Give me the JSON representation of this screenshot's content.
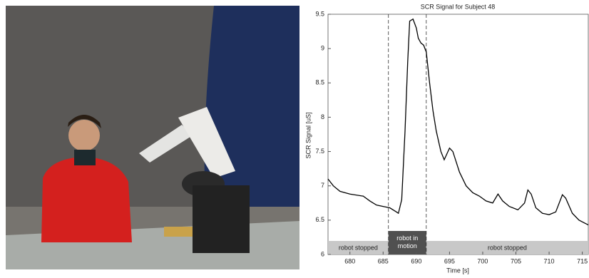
{
  "chart_data": {
    "type": "line",
    "title": "SCR Signal for Subject 48",
    "x_label": "Time [s]",
    "y_label": "SCR Signal [uS]",
    "x": [
      676.7,
      677.5,
      678.5,
      680,
      682,
      683,
      684,
      685,
      686,
      687,
      687.3,
      687.8,
      688.3,
      688.7,
      689,
      689.5,
      690,
      690.3,
      690.7,
      691.1,
      691.5,
      692,
      692.5,
      693,
      693.7,
      694.2,
      695,
      695.5,
      696.5,
      697.5,
      698.5,
      699.5,
      700.5,
      701.5,
      702.3,
      703,
      704,
      705.3,
      706.3,
      706.8,
      707.3,
      708,
      709,
      710,
      711,
      712,
      712.5,
      713.5,
      714.5,
      715.9
    ],
    "values": [
      7.1,
      7.0,
      6.92,
      6.88,
      6.85,
      6.78,
      6.72,
      6.7,
      6.68,
      6.62,
      6.6,
      6.8,
      7.8,
      8.8,
      9.4,
      9.43,
      9.3,
      9.15,
      9.08,
      9.05,
      8.95,
      8.5,
      8.1,
      7.8,
      7.5,
      7.38,
      7.55,
      7.5,
      7.2,
      7.0,
      6.9,
      6.85,
      6.78,
      6.75,
      6.88,
      6.78,
      6.7,
      6.65,
      6.75,
      6.94,
      6.88,
      6.68,
      6.6,
      6.58,
      6.62,
      6.87,
      6.82,
      6.6,
      6.5,
      6.43
    ],
    "color": "#000000",
    "xlim": [
      676.7,
      715.9
    ],
    "xticks": [
      680,
      685,
      690,
      695,
      700,
      705,
      710,
      715
    ],
    "ylim": [
      6,
      9.5
    ],
    "yticks": [
      6,
      6.5,
      7,
      7.5,
      8,
      8.5,
      9,
      9.5
    ],
    "regions": [
      {
        "label": "robot stopped",
        "start": 676.7,
        "end": 685.8,
        "color": "#c8c8c8"
      },
      {
        "label": "robot in motion",
        "start": 685.8,
        "end": 691.5,
        "color": "#505050"
      },
      {
        "label": "robot stopped",
        "start": 691.5,
        "end": 715.9,
        "color": "#c8c8c8"
      }
    ]
  }
}
